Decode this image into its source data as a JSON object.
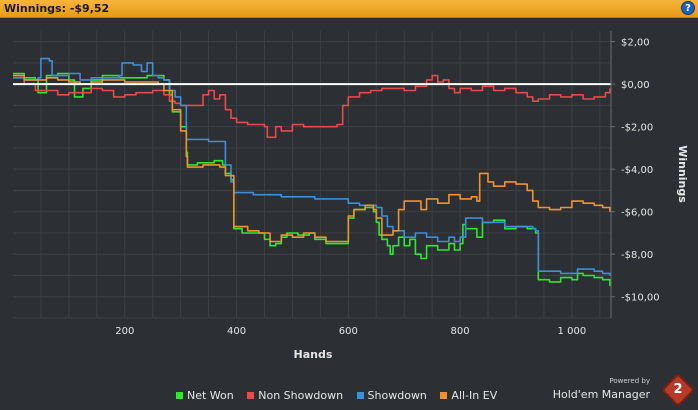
{
  "header": {
    "title": "Winnings: -$9,52",
    "help_label": "?"
  },
  "brand": {
    "powered_by": "Powered by",
    "name": "Hold'em Manager",
    "logo_text": "2"
  },
  "chart_data": {
    "type": "line",
    "xlabel": "Hands",
    "ylabel": "Winnings",
    "xlim": [
      0,
      1070
    ],
    "ylim": [
      -11,
      2.5
    ],
    "x_ticks": [
      200,
      400,
      600,
      800,
      1000
    ],
    "x_tick_labels": [
      "200",
      "400",
      "600",
      "800",
      "1 000"
    ],
    "y_ticks": [
      2,
      0,
      -2,
      -4,
      -6,
      -8,
      -10
    ],
    "y_tick_labels": [
      "$2,00",
      "$0,00",
      "-$2,00",
      "-$4,00",
      "-$6,00",
      "-$8,00",
      "-$10,00"
    ],
    "grid": true,
    "legend_position": "bottom",
    "colors": {
      "background": "#2c2f33",
      "grid": "#3d4146",
      "zero_line": "#ffffff",
      "text": "#e6e6e6"
    },
    "series": [
      {
        "name": "Net Won",
        "color": "#2ee82e",
        "points": [
          [
            0,
            0.5
          ],
          [
            20,
            0.3
          ],
          [
            40,
            0.2
          ],
          [
            45,
            -0.4
          ],
          [
            60,
            0.4
          ],
          [
            80,
            0.5
          ],
          [
            100,
            0.2
          ],
          [
            110,
            -0.6
          ],
          [
            125,
            -0.2
          ],
          [
            140,
            0.2
          ],
          [
            160,
            0.4
          ],
          [
            190,
            0.3
          ],
          [
            220,
            0.3
          ],
          [
            240,
            0.4
          ],
          [
            270,
            0.2
          ],
          [
            280,
            -0.5
          ],
          [
            285,
            -1.3
          ],
          [
            300,
            -2.0
          ],
          [
            310,
            -3.2
          ],
          [
            312,
            -3.8
          ],
          [
            330,
            -3.7
          ],
          [
            360,
            -3.6
          ],
          [
            375,
            -3.8
          ],
          [
            380,
            -4.2
          ],
          [
            390,
            -4.5
          ],
          [
            395,
            -6.8
          ],
          [
            410,
            -7.0
          ],
          [
            430,
            -7.0
          ],
          [
            450,
            -7.3
          ],
          [
            460,
            -7.6
          ],
          [
            470,
            -7.5
          ],
          [
            480,
            -7.2
          ],
          [
            490,
            -7.0
          ],
          [
            510,
            -7.1
          ],
          [
            530,
            -7.0
          ],
          [
            540,
            -7.3
          ],
          [
            560,
            -7.5
          ],
          [
            590,
            -7.5
          ],
          [
            600,
            -6.3
          ],
          [
            610,
            -5.9
          ],
          [
            630,
            -5.8
          ],
          [
            645,
            -6.0
          ],
          [
            650,
            -6.5
          ],
          [
            655,
            -7.1
          ],
          [
            660,
            -7.3
          ],
          [
            670,
            -7.6
          ],
          [
            675,
            -8.0
          ],
          [
            680,
            -7.6
          ],
          [
            690,
            -7.2
          ],
          [
            700,
            -7.6
          ],
          [
            710,
            -7.3
          ],
          [
            720,
            -8.0
          ],
          [
            730,
            -8.2
          ],
          [
            740,
            -7.6
          ],
          [
            760,
            -7.8
          ],
          [
            780,
            -7.5
          ],
          [
            790,
            -7.8
          ],
          [
            800,
            -7.5
          ],
          [
            805,
            -6.6
          ],
          [
            810,
            -6.8
          ],
          [
            830,
            -7.2
          ],
          [
            840,
            -6.5
          ],
          [
            860,
            -6.4
          ],
          [
            880,
            -6.8
          ],
          [
            900,
            -6.7
          ],
          [
            920,
            -6.8
          ],
          [
            935,
            -7.0
          ],
          [
            940,
            -9.2
          ],
          [
            960,
            -9.3
          ],
          [
            980,
            -9.1
          ],
          [
            1000,
            -9.2
          ],
          [
            1010,
            -8.9
          ],
          [
            1020,
            -9.0
          ],
          [
            1040,
            -9.1
          ],
          [
            1055,
            -9.2
          ],
          [
            1068,
            -9.5
          ]
        ]
      },
      {
        "name": "Non Showdown",
        "color": "#e84a4a",
        "points": [
          [
            0,
            0.4
          ],
          [
            20,
            0.0
          ],
          [
            40,
            -0.3
          ],
          [
            60,
            -0.3
          ],
          [
            80,
            -0.5
          ],
          [
            100,
            -0.4
          ],
          [
            120,
            -0.4
          ],
          [
            140,
            -0.2
          ],
          [
            160,
            -0.3
          ],
          [
            180,
            -0.6
          ],
          [
            200,
            -0.5
          ],
          [
            220,
            -0.4
          ],
          [
            250,
            -0.3
          ],
          [
            270,
            -0.5
          ],
          [
            280,
            -0.8
          ],
          [
            290,
            -0.9
          ],
          [
            300,
            -1.0
          ],
          [
            320,
            -1.0
          ],
          [
            340,
            -0.5
          ],
          [
            350,
            -0.3
          ],
          [
            360,
            -0.7
          ],
          [
            370,
            -0.5
          ],
          [
            380,
            -1.2
          ],
          [
            390,
            -1.6
          ],
          [
            400,
            -1.8
          ],
          [
            420,
            -1.9
          ],
          [
            440,
            -1.9
          ],
          [
            450,
            -2.0
          ],
          [
            455,
            -2.5
          ],
          [
            470,
            -2.0
          ],
          [
            480,
            -2.2
          ],
          [
            500,
            -1.9
          ],
          [
            520,
            -2.0
          ],
          [
            540,
            -2.0
          ],
          [
            570,
            -2.0
          ],
          [
            580,
            -1.9
          ],
          [
            590,
            -1.0
          ],
          [
            600,
            -0.6
          ],
          [
            620,
            -0.4
          ],
          [
            640,
            -0.3
          ],
          [
            660,
            -0.2
          ],
          [
            680,
            -0.2
          ],
          [
            700,
            -0.3
          ],
          [
            720,
            -0.1
          ],
          [
            740,
            0.2
          ],
          [
            750,
            0.4
          ],
          [
            760,
            0.1
          ],
          [
            770,
            0.2
          ],
          [
            780,
            -0.2
          ],
          [
            790,
            -0.4
          ],
          [
            800,
            -0.2
          ],
          [
            820,
            -0.3
          ],
          [
            840,
            -0.1
          ],
          [
            860,
            -0.3
          ],
          [
            880,
            -0.2
          ],
          [
            900,
            -0.4
          ],
          [
            920,
            -0.6
          ],
          [
            930,
            -0.8
          ],
          [
            940,
            -0.7
          ],
          [
            960,
            -0.5
          ],
          [
            980,
            -0.6
          ],
          [
            1000,
            -0.5
          ],
          [
            1020,
            -0.7
          ],
          [
            1040,
            -0.6
          ],
          [
            1060,
            -0.4
          ],
          [
            1068,
            -0.2
          ]
        ]
      },
      {
        "name": "Showdown",
        "color": "#3e8fd8",
        "points": [
          [
            0,
            0.3
          ],
          [
            20,
            0.2
          ],
          [
            45,
            0.3
          ],
          [
            50,
            1.2
          ],
          [
            65,
            1.1
          ],
          [
            70,
            0.4
          ],
          [
            100,
            0.5
          ],
          [
            120,
            0.2
          ],
          [
            140,
            0.3
          ],
          [
            190,
            0.4
          ],
          [
            195,
            1.0
          ],
          [
            215,
            0.9
          ],
          [
            230,
            0.6
          ],
          [
            240,
            1.0
          ],
          [
            250,
            0.4
          ],
          [
            260,
            0.3
          ],
          [
            270,
            0.2
          ],
          [
            280,
            -0.3
          ],
          [
            290,
            -0.6
          ],
          [
            300,
            -1.0
          ],
          [
            310,
            -2.6
          ],
          [
            350,
            -2.7
          ],
          [
            380,
            -3.8
          ],
          [
            390,
            -4.6
          ],
          [
            395,
            -5.1
          ],
          [
            430,
            -5.2
          ],
          [
            480,
            -5.3
          ],
          [
            540,
            -5.4
          ],
          [
            600,
            -5.6
          ],
          [
            620,
            -5.7
          ],
          [
            650,
            -5.8
          ],
          [
            660,
            -6.2
          ],
          [
            670,
            -6.7
          ],
          [
            680,
            -6.9
          ],
          [
            700,
            -7.2
          ],
          [
            720,
            -7.0
          ],
          [
            740,
            -7.2
          ],
          [
            760,
            -7.4
          ],
          [
            780,
            -7.2
          ],
          [
            790,
            -7.4
          ],
          [
            800,
            -7.2
          ],
          [
            810,
            -6.3
          ],
          [
            840,
            -6.5
          ],
          [
            860,
            -6.5
          ],
          [
            880,
            -6.7
          ],
          [
            900,
            -6.7
          ],
          [
            930,
            -6.8
          ],
          [
            935,
            -6.9
          ],
          [
            940,
            -8.8
          ],
          [
            980,
            -8.9
          ],
          [
            1000,
            -8.9
          ],
          [
            1010,
            -8.7
          ],
          [
            1040,
            -8.8
          ],
          [
            1055,
            -8.9
          ],
          [
            1068,
            -9.0
          ]
        ]
      },
      {
        "name": "All-In EV",
        "color": "#f0932e",
        "points": [
          [
            0,
            0.4
          ],
          [
            20,
            0.2
          ],
          [
            40,
            0.2
          ],
          [
            60,
            0.3
          ],
          [
            80,
            0.2
          ],
          [
            100,
            0.1
          ],
          [
            120,
            0.0
          ],
          [
            140,
            0.1
          ],
          [
            160,
            0.2
          ],
          [
            200,
            0.1
          ],
          [
            230,
            0.1
          ],
          [
            260,
            0.0
          ],
          [
            270,
            -0.3
          ],
          [
            285,
            -1.2
          ],
          [
            300,
            -2.2
          ],
          [
            310,
            -3.4
          ],
          [
            312,
            -3.9
          ],
          [
            340,
            -3.8
          ],
          [
            370,
            -3.9
          ],
          [
            380,
            -4.3
          ],
          [
            395,
            -6.7
          ],
          [
            420,
            -6.9
          ],
          [
            440,
            -7.0
          ],
          [
            460,
            -7.4
          ],
          [
            480,
            -7.1
          ],
          [
            500,
            -7.2
          ],
          [
            520,
            -7.0
          ],
          [
            540,
            -7.2
          ],
          [
            560,
            -7.4
          ],
          [
            590,
            -7.4
          ],
          [
            600,
            -6.2
          ],
          [
            610,
            -5.9
          ],
          [
            630,
            -5.7
          ],
          [
            645,
            -5.9
          ],
          [
            650,
            -6.3
          ],
          [
            660,
            -7.1
          ],
          [
            680,
            -6.9
          ],
          [
            690,
            -5.9
          ],
          [
            700,
            -5.5
          ],
          [
            720,
            -5.5
          ],
          [
            730,
            -5.9
          ],
          [
            740,
            -5.4
          ],
          [
            760,
            -5.6
          ],
          [
            780,
            -5.2
          ],
          [
            800,
            -5.4
          ],
          [
            820,
            -5.3
          ],
          [
            830,
            -5.5
          ],
          [
            835,
            -4.2
          ],
          [
            850,
            -4.6
          ],
          [
            860,
            -4.8
          ],
          [
            880,
            -4.6
          ],
          [
            900,
            -4.7
          ],
          [
            920,
            -5.0
          ],
          [
            930,
            -5.5
          ],
          [
            940,
            -5.8
          ],
          [
            960,
            -5.9
          ],
          [
            980,
            -5.8
          ],
          [
            1000,
            -5.5
          ],
          [
            1020,
            -5.6
          ],
          [
            1040,
            -5.7
          ],
          [
            1055,
            -5.8
          ],
          [
            1068,
            -6.0
          ]
        ]
      }
    ]
  }
}
